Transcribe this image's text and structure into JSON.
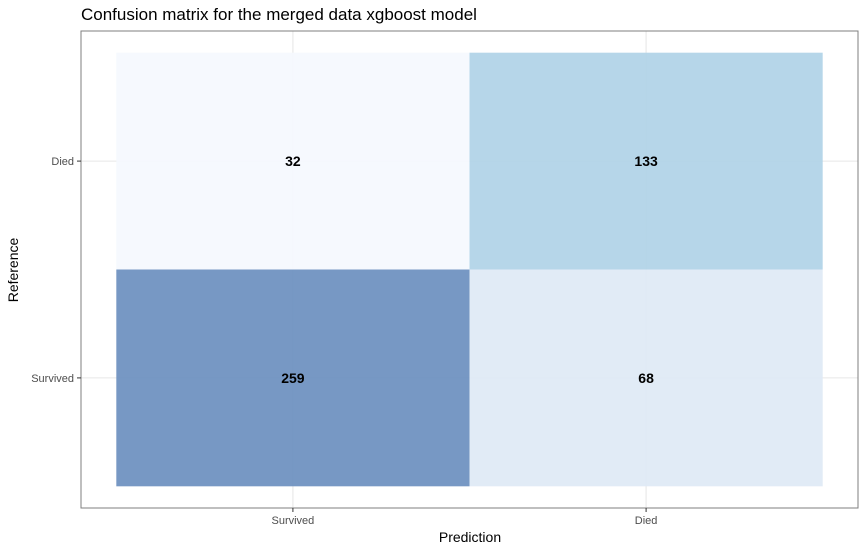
{
  "chart_data": {
    "type": "heatmap",
    "title": "Confusion matrix for the merged data xgboost model",
    "xlabel": "Prediction",
    "ylabel": "Reference",
    "x_categories": [
      "Survived",
      "Died"
    ],
    "y_categories": [
      "Survived",
      "Died"
    ],
    "cells": [
      {
        "prediction": "Survived",
        "reference": "Died",
        "value": 32,
        "color": "#f5f8fe"
      },
      {
        "prediction": "Died",
        "reference": "Died",
        "value": 133,
        "color": "#b0d3e7"
      },
      {
        "prediction": "Survived",
        "reference": "Survived",
        "value": 259,
        "color": "#6b8fbf"
      },
      {
        "prediction": "Died",
        "reference": "Survived",
        "value": 68,
        "color": "#dee9f5"
      }
    ],
    "grid": true,
    "legend": "none"
  }
}
